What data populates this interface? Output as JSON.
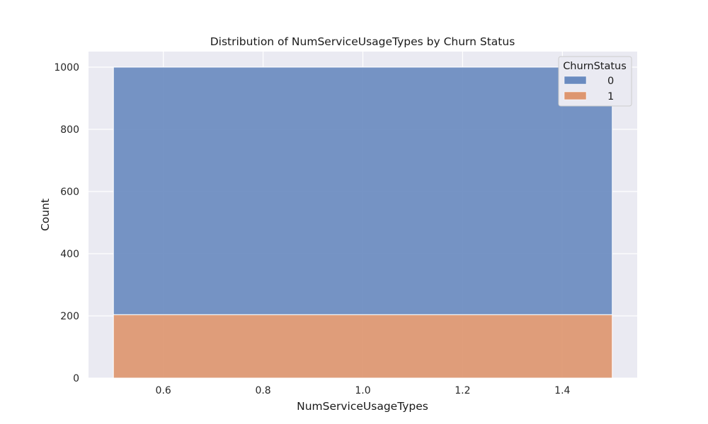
{
  "chart_data": {
    "type": "bar",
    "stacked": true,
    "title": "Distribution of NumServiceUsageTypes by Churn Status",
    "xlabel": "NumServiceUsageTypes",
    "ylabel": "Count",
    "xlim": [
      0.45,
      1.55
    ],
    "ylim": [
      0,
      1050
    ],
    "xticks": [
      0.6,
      0.8,
      1.0,
      1.2,
      1.4
    ],
    "xtick_labels": [
      "0.6",
      "0.8",
      "1.0",
      "1.2",
      "1.4"
    ],
    "yticks": [
      0,
      200,
      400,
      600,
      800,
      1000
    ],
    "ytick_labels": [
      "0",
      "200",
      "400",
      "600",
      "800",
      "1000"
    ],
    "bins": [
      {
        "x_start": 0.5,
        "x_end": 1.5
      }
    ],
    "series": [
      {
        "name": "0",
        "values": [
          796
        ],
        "color": "#6a8bc0"
      },
      {
        "name": "1",
        "values": [
          204
        ],
        "color": "#dd9670"
      }
    ],
    "legend": {
      "title": "ChurnStatus",
      "position": "top-right"
    },
    "grid": true,
    "background": "#eaeaf2"
  }
}
